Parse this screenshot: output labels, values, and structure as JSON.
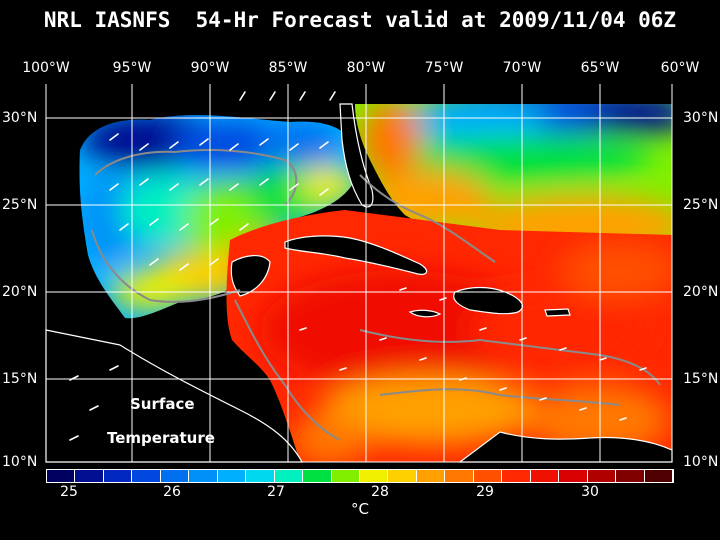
{
  "title": "NRL IASNFS  54-Hr Forecast valid at 2009/11/04 06Z",
  "lon_labels": [
    "100°W",
    "95°W",
    "90°W",
    "85°W",
    "80°W",
    "75°W",
    "70°W",
    "65°W",
    "60°W"
  ],
  "lat_labels": [
    "30°N",
    "25°N",
    "20°N",
    "15°N",
    "10°N"
  ],
  "colorbar": {
    "colors": [
      "#000060",
      "#001090",
      "#0028c0",
      "#0048e0",
      "#0070f0",
      "#0090f8",
      "#00b0ff",
      "#00d8f0",
      "#00f0c0",
      "#00e040",
      "#80f000",
      "#f0f000",
      "#ffd000",
      "#ffa000",
      "#ff7800",
      "#ff5000",
      "#ff2800",
      "#f01000",
      "#d80000",
      "#b00000",
      "#800000",
      "#500000"
    ],
    "labels": [
      "25",
      "26",
      "27",
      "28",
      "29",
      "30"
    ],
    "unit": "°C"
  },
  "annotation": {
    "line1": "Surface",
    "line2": "Temperature"
  }
}
